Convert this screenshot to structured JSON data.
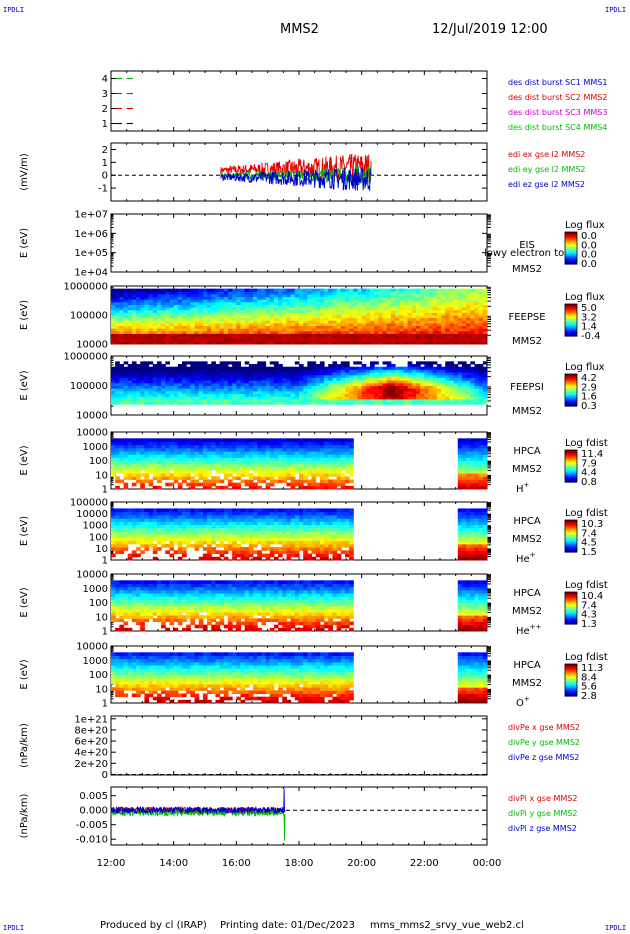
{
  "header": {
    "corner_label": "IPDLI",
    "spacecraft": "MMS2",
    "datetime": "12/Jul/2019 12:00"
  },
  "footer": {
    "produced_by": "Produced by cl (IRAP)",
    "printing_date": "Printing date: 01/Dec/2023",
    "filename": "mms_mms2_srvy_vue_web2.cl"
  },
  "colors": {
    "sc1": "#0000cc",
    "sc2": "#e00000",
    "sc3": "#cc00cc",
    "sc4": "#00bb00",
    "x": "#e00000",
    "y": "#00bb00",
    "z": "#0000cc"
  },
  "chart_data": [
    {
      "type": "line",
      "id": "availability",
      "ylim": [
        0.5,
        4.5
      ],
      "yticks": [
        "1",
        "2",
        "3",
        "4"
      ],
      "legend": [
        "des dist burst SC1 MMS1",
        "des dist burst SC2 MMS2",
        "des dist burst SC3 MMS3",
        "des dist burst SC4 MMS4"
      ],
      "series": [
        {
          "y": 1,
          "x": [
            12.15,
            12.35,
            12.5,
            12.7
          ]
        },
        {
          "y": 2,
          "x": [
            12.15,
            12.35,
            12.5,
            12.7
          ]
        },
        {
          "y": 3,
          "x": [
            12.15,
            12.35,
            12.5,
            12.7
          ]
        },
        {
          "y": 4,
          "x": [
            12.15,
            12.35,
            12.5,
            12.7
          ]
        }
      ]
    },
    {
      "type": "line",
      "id": "edi",
      "ylabel": "(mV/m)",
      "ylim": [
        -2,
        2.5
      ],
      "yticks": [
        "-1",
        "0",
        "1",
        "2"
      ],
      "legend": [
        "edi ex gse l2 MMS2",
        "edi ey gse l2 MMS2",
        "edi ez gse l2 MMS2"
      ],
      "xrange": [
        15.5,
        20.3
      ]
    },
    {
      "type": "heatmap",
      "id": "eis",
      "ylabel": "E (eV)",
      "yticks": [
        "1e+04",
        "1e+05",
        "1e+06",
        "1e+07"
      ],
      "name1": "EIS",
      "name2": "MMS2",
      "overlay": "phxtof",
      "overlay_text": "lowy electron to",
      "cbar_title": "Log flux",
      "cbar_ticks": [
        "0.0",
        "0.0",
        "0.0",
        "0.0"
      ]
    },
    {
      "type": "heatmap",
      "id": "feepse",
      "ylabel": "E (eV)",
      "yticks": [
        "10000",
        "100000",
        "1000000"
      ],
      "name1": "FEEPSE",
      "name2": "MMS2",
      "cbar_title": "Log flux",
      "cbar_ticks": [
        "5.0",
        "3.2",
        "1.4",
        "-0.4"
      ]
    },
    {
      "type": "heatmap",
      "id": "feepsi",
      "ylabel": "E (eV)",
      "yticks": [
        "10000",
        "100000",
        "1000000"
      ],
      "name1": "FEEPSI",
      "name2": "MMS2",
      "cbar_title": "Log flux",
      "cbar_ticks": [
        "4.2",
        "2.9",
        "1.6",
        "0.3"
      ]
    },
    {
      "type": "heatmap",
      "id": "hpca_h",
      "ylabel": "E (eV)",
      "yticks": [
        "1",
        "10",
        "100",
        "1000",
        "10000"
      ],
      "name1": "HPCA",
      "name2": "MMS2",
      "species": "H",
      "charge": "+",
      "cbar_title": "Log fdist",
      "cbar_ticks": [
        "11.4",
        "7.9",
        "4.4",
        "0.8"
      ]
    },
    {
      "type": "heatmap",
      "id": "hpca_he",
      "ylabel": "E (eV)",
      "yticks": [
        "1",
        "10",
        "100",
        "1000",
        "10000",
        "100000"
      ],
      "name1": "HPCA",
      "name2": "MMS2",
      "species": "He",
      "charge": "+",
      "cbar_title": "Log fdist",
      "cbar_ticks": [
        "10.3",
        "7.4",
        "4.5",
        "1.5"
      ]
    },
    {
      "type": "heatmap",
      "id": "hpca_hepp",
      "ylabel": "E (eV)",
      "yticks": [
        "1",
        "10",
        "100",
        "1000",
        "10000"
      ],
      "name1": "HPCA",
      "name2": "MMS2",
      "species": "He",
      "charge": "++",
      "cbar_title": "Log fdist",
      "cbar_ticks": [
        "10.4",
        "7.4",
        "4.3",
        "1.3"
      ]
    },
    {
      "type": "heatmap",
      "id": "hpca_o",
      "ylabel": "E (eV)",
      "yticks": [
        "1",
        "10",
        "100",
        "1000",
        "10000"
      ],
      "name1": "HPCA",
      "name2": "MMS2",
      "species": "O",
      "charge": "+",
      "cbar_title": "Log fdist",
      "cbar_ticks": [
        "11.3",
        "8.4",
        "5.6",
        "2.8"
      ]
    },
    {
      "type": "line",
      "id": "divpe",
      "ylabel": "(nPa/km)",
      "ylim": [
        -1e+19,
        1.05e+21
      ],
      "yticks": [
        "0",
        "2e+20",
        "4e+20",
        "6e+20",
        "8e+20",
        "1e+21"
      ],
      "legend": [
        "divPe x gse MMS2",
        "divPe y gse MMS2",
        "divPe z gse MMS2"
      ]
    },
    {
      "type": "line",
      "id": "divpi",
      "ylabel": "(nPa/km)",
      "ylim": [
        -0.012,
        0.008
      ],
      "yticks": [
        "-0.010",
        "-0.005",
        "0.000",
        "0.005"
      ],
      "legend": [
        "divPi x gse MMS2",
        "divPi y gse MMS2",
        "divPi z gse MMS2"
      ],
      "xrange": [
        12.0,
        17.55
      ]
    }
  ],
  "time_axis": {
    "range": [
      12,
      24
    ],
    "ticks": [
      "12:00",
      "14:00",
      "16:00",
      "18:00",
      "20:00",
      "22:00",
      "00:00"
    ],
    "tick_hours": [
      12,
      14,
      16,
      18,
      20,
      22,
      24
    ],
    "hpca_gaps": [
      [
        19.75,
        23.1
      ]
    ]
  }
}
